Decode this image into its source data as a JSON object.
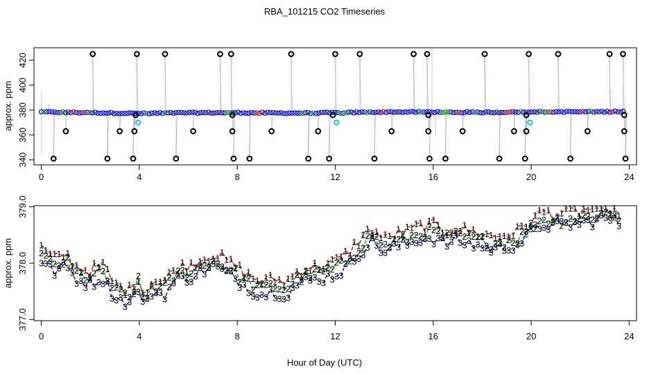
{
  "figure": {
    "title": "RBA_101215  CO2 Timeseries",
    "xlabel": "Hour of Day (UTC)"
  },
  "chart_data": [
    {
      "type": "scatter",
      "panel": "top",
      "ylabel": "approx. ppm",
      "xlim": [
        -0.3,
        24.3
      ],
      "ylim": [
        336,
        430
      ],
      "xticks": [
        0,
        4,
        8,
        12,
        16,
        20,
        24
      ],
      "yticks": [
        340,
        360,
        380,
        400,
        420
      ],
      "colors": {
        "blue": "#0000cc",
        "cyan": "#00cccc",
        "black": "#000000",
        "grey": "#999999"
      },
      "baseline": {
        "x": [
          0,
          2,
          4,
          6,
          8,
          10,
          12,
          14,
          16,
          18,
          20,
          22,
          23.8
        ],
        "y": [
          378.5,
          377.9,
          377.3,
          377.8,
          377.9,
          377.6,
          377.8,
          378.5,
          378.4,
          378.1,
          378.6,
          378.6,
          378.8
        ]
      },
      "black_circles": [
        [
          0.5,
          341
        ],
        [
          1.0,
          363
        ],
        [
          2.1,
          425
        ],
        [
          2.7,
          341
        ],
        [
          3.2,
          363
        ],
        [
          3.75,
          341
        ],
        [
          3.8,
          363
        ],
        [
          3.9,
          425
        ],
        [
          3.85,
          376
        ],
        [
          5.05,
          425
        ],
        [
          5.5,
          341
        ],
        [
          6.2,
          363
        ],
        [
          7.3,
          425
        ],
        [
          7.75,
          425
        ],
        [
          7.8,
          363
        ],
        [
          7.85,
          341
        ],
        [
          7.8,
          376
        ],
        [
          8.5,
          341
        ],
        [
          9.4,
          363
        ],
        [
          10.2,
          425
        ],
        [
          10.9,
          341
        ],
        [
          11.3,
          363
        ],
        [
          11.75,
          341
        ],
        [
          11.9,
          376
        ],
        [
          12.0,
          425
        ],
        [
          13.0,
          425
        ],
        [
          13.6,
          341
        ],
        [
          14.3,
          363
        ],
        [
          15.2,
          425
        ],
        [
          15.75,
          425
        ],
        [
          15.8,
          363
        ],
        [
          15.85,
          341
        ],
        [
          15.8,
          376
        ],
        [
          16.5,
          341
        ],
        [
          17.2,
          363
        ],
        [
          18.1,
          425
        ],
        [
          18.7,
          341
        ],
        [
          19.3,
          363
        ],
        [
          19.75,
          341
        ],
        [
          19.8,
          363
        ],
        [
          19.9,
          425
        ],
        [
          19.8,
          376
        ],
        [
          21.1,
          425
        ],
        [
          21.6,
          341
        ],
        [
          22.3,
          363
        ],
        [
          23.2,
          425
        ],
        [
          23.75,
          425
        ],
        [
          23.8,
          363
        ],
        [
          23.85,
          341
        ],
        [
          23.8,
          376
        ]
      ],
      "cyan_circles": [
        [
          3.95,
          370
        ],
        [
          12.05,
          370
        ],
        [
          19.95,
          370
        ]
      ]
    },
    {
      "type": "line",
      "panel": "bottom",
      "ylabel": "approx. ppm",
      "xlim": [
        -0.3,
        24.3
      ],
      "ylim": [
        376.98,
        379.02
      ],
      "xticks": [
        0,
        4,
        8,
        12,
        16,
        20,
        24
      ],
      "yticks": [
        377.0,
        378.0,
        379.0
      ],
      "ytick_labels": [
        "377.0",
        "378.0",
        "379.0"
      ],
      "series": [
        {
          "name": "1",
          "color": "#dd0000"
        },
        {
          "name": "2",
          "color": "#00aa00"
        },
        {
          "name": "3",
          "color": "#0000cc"
        }
      ],
      "x": [
        0,
        0.5,
        1.0,
        1.5,
        2.0,
        2.5,
        3.0,
        3.3,
        3.6,
        4.0,
        4.2,
        4.5,
        5.0,
        5.5,
        6.0,
        6.5,
        7.0,
        7.5,
        8.0,
        8.5,
        9.0,
        9.5,
        10.0,
        10.5,
        11.0,
        11.5,
        12.0,
        12.5,
        13.0,
        13.5,
        14.0,
        14.5,
        15.0,
        15.5,
        16.0,
        16.5,
        17.0,
        17.5,
        18.0,
        18.5,
        19.0,
        19.5,
        20.0,
        20.5,
        21.0,
        21.5,
        22.0,
        22.5,
        23.0,
        23.5,
        23.7
      ],
      "y": [
        378.15,
        377.95,
        378.05,
        377.8,
        377.75,
        377.85,
        377.5,
        377.45,
        377.4,
        377.7,
        377.25,
        377.6,
        377.55,
        377.8,
        377.85,
        377.95,
        378.05,
        377.95,
        377.8,
        377.65,
        377.55,
        377.6,
        377.55,
        377.75,
        377.8,
        377.85,
        377.9,
        378.05,
        378.3,
        378.5,
        378.3,
        378.4,
        378.45,
        378.55,
        378.55,
        378.45,
        378.5,
        378.45,
        378.4,
        378.35,
        378.4,
        378.45,
        378.65,
        378.8,
        378.75,
        378.8,
        378.8,
        378.85,
        378.9,
        378.85,
        378.75
      ]
    }
  ]
}
